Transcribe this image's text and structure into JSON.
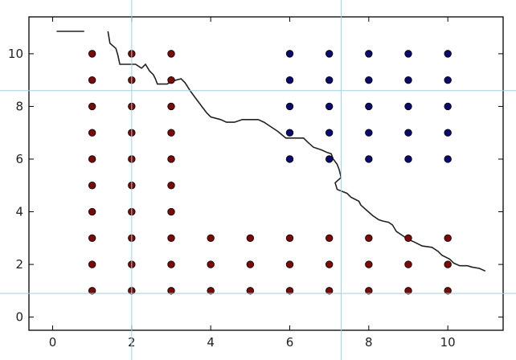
{
  "chart_data": {
    "type": "scatter",
    "title": "",
    "xlabel": "",
    "ylabel": "",
    "xlim": [
      -0.6,
      11.4
    ],
    "ylim": [
      -0.5,
      11.4
    ],
    "grid": false,
    "legend": "none",
    "x_ticks": [
      0,
      2,
      4,
      6,
      8,
      10
    ],
    "y_ticks": [
      0,
      2,
      4,
      6,
      8,
      10
    ],
    "colors": {
      "class_a": "#7a0a05",
      "class_b": "#0a0a6e",
      "boundary": "#222222",
      "cursor": "#9cd3e0"
    },
    "series": [
      {
        "color": "class_a",
        "points": [
          [
            1,
            1
          ],
          [
            1,
            2
          ],
          [
            1,
            3
          ],
          [
            1,
            4
          ],
          [
            1,
            5
          ],
          [
            1,
            6
          ],
          [
            1,
            7
          ],
          [
            1,
            8
          ],
          [
            1,
            9
          ],
          [
            1,
            10
          ],
          [
            2,
            1
          ],
          [
            2,
            2
          ],
          [
            2,
            3
          ],
          [
            2,
            4
          ],
          [
            2,
            5
          ],
          [
            2,
            6
          ],
          [
            2,
            7
          ],
          [
            2,
            8
          ],
          [
            2,
            9
          ],
          [
            2,
            10
          ],
          [
            3,
            1
          ],
          [
            3,
            2
          ],
          [
            3,
            3
          ],
          [
            3,
            4
          ],
          [
            3,
            5
          ],
          [
            3,
            6
          ],
          [
            3,
            7
          ],
          [
            3,
            8
          ],
          [
            3,
            9
          ],
          [
            3,
            10
          ],
          [
            4,
            1
          ],
          [
            4,
            2
          ],
          [
            4,
            3
          ],
          [
            5,
            1
          ],
          [
            5,
            2
          ],
          [
            5,
            3
          ],
          [
            6,
            1
          ],
          [
            6,
            2
          ],
          [
            6,
            3
          ],
          [
            7,
            1
          ],
          [
            7,
            2
          ],
          [
            7,
            3
          ],
          [
            8,
            1
          ],
          [
            8,
            2
          ],
          [
            8,
            3
          ],
          [
            9,
            1
          ],
          [
            9,
            2
          ],
          [
            9,
            3
          ],
          [
            10,
            1
          ],
          [
            10,
            2
          ],
          [
            10,
            3
          ]
        ]
      },
      {
        "color": "class_b",
        "points": [
          [
            6,
            6
          ],
          [
            6,
            7
          ],
          [
            6,
            8
          ],
          [
            6,
            9
          ],
          [
            6,
            10
          ],
          [
            7,
            6
          ],
          [
            7,
            7
          ],
          [
            7,
            8
          ],
          [
            7,
            9
          ],
          [
            7,
            10
          ],
          [
            8,
            6
          ],
          [
            8,
            7
          ],
          [
            8,
            8
          ],
          [
            8,
            9
          ],
          [
            8,
            10
          ],
          [
            9,
            6
          ],
          [
            9,
            7
          ],
          [
            9,
            8
          ],
          [
            9,
            9
          ],
          [
            9,
            10
          ],
          [
            10,
            6
          ],
          [
            10,
            7
          ],
          [
            10,
            8
          ],
          [
            10,
            9
          ],
          [
            10,
            10
          ]
        ]
      }
    ],
    "boundary_segments": [
      [
        [
          0.1,
          10.85
        ],
        [
          0.8,
          10.85
        ]
      ],
      [
        [
          1.4,
          10.85
        ],
        [
          1.45,
          10.4
        ],
        [
          1.6,
          10.2
        ],
        [
          1.65,
          9.95
        ],
        [
          1.7,
          9.6
        ],
        [
          2.1,
          9.6
        ],
        [
          2.2,
          9.5
        ],
        [
          2.25,
          9.45
        ],
        [
          2.35,
          9.6
        ],
        [
          2.45,
          9.35
        ],
        [
          2.55,
          9.2
        ],
        [
          2.6,
          9.05
        ],
        [
          2.65,
          8.85
        ],
        [
          2.9,
          8.85
        ],
        [
          3.0,
          8.95
        ],
        [
          3.25,
          9.05
        ],
        [
          3.35,
          8.9
        ],
        [
          3.5,
          8.55
        ],
        [
          3.6,
          8.35
        ],
        [
          3.7,
          8.15
        ],
        [
          3.8,
          7.95
        ],
        [
          3.9,
          7.75
        ],
        [
          4.0,
          7.6
        ],
        [
          4.25,
          7.5
        ],
        [
          4.4,
          7.4
        ],
        [
          4.6,
          7.4
        ],
        [
          4.8,
          7.5
        ],
        [
          5.2,
          7.5
        ],
        [
          5.35,
          7.4
        ],
        [
          5.5,
          7.25
        ],
        [
          5.7,
          7.05
        ],
        [
          5.9,
          6.8
        ],
        [
          6.35,
          6.8
        ],
        [
          6.45,
          6.65
        ],
        [
          6.6,
          6.45
        ],
        [
          6.8,
          6.35
        ],
        [
          6.95,
          6.25
        ],
        [
          7.05,
          6.2
        ],
        [
          7.1,
          6.0
        ],
        [
          7.2,
          5.8
        ],
        [
          7.25,
          5.6
        ],
        [
          7.3,
          5.3
        ],
        [
          7.15,
          5.1
        ],
        [
          7.2,
          4.85
        ],
        [
          7.45,
          4.7
        ],
        [
          7.55,
          4.55
        ],
        [
          7.75,
          4.4
        ],
        [
          7.8,
          4.25
        ],
        [
          7.95,
          4.05
        ],
        [
          8.1,
          3.85
        ],
        [
          8.25,
          3.7
        ],
        [
          8.35,
          3.65
        ],
        [
          8.5,
          3.6
        ],
        [
          8.6,
          3.5
        ],
        [
          8.7,
          3.25
        ],
        [
          8.85,
          3.1
        ],
        [
          9.0,
          2.95
        ],
        [
          9.15,
          2.85
        ],
        [
          9.35,
          2.7
        ],
        [
          9.6,
          2.65
        ],
        [
          9.75,
          2.5
        ],
        [
          9.85,
          2.35
        ],
        [
          10.05,
          2.2
        ],
        [
          10.15,
          2.05
        ],
        [
          10.3,
          1.95
        ],
        [
          10.5,
          1.95
        ],
        [
          10.6,
          1.9
        ],
        [
          10.8,
          1.85
        ],
        [
          10.95,
          1.75
        ]
      ]
    ],
    "cursor": {
      "x": 7.3,
      "y": 0.9
    }
  }
}
